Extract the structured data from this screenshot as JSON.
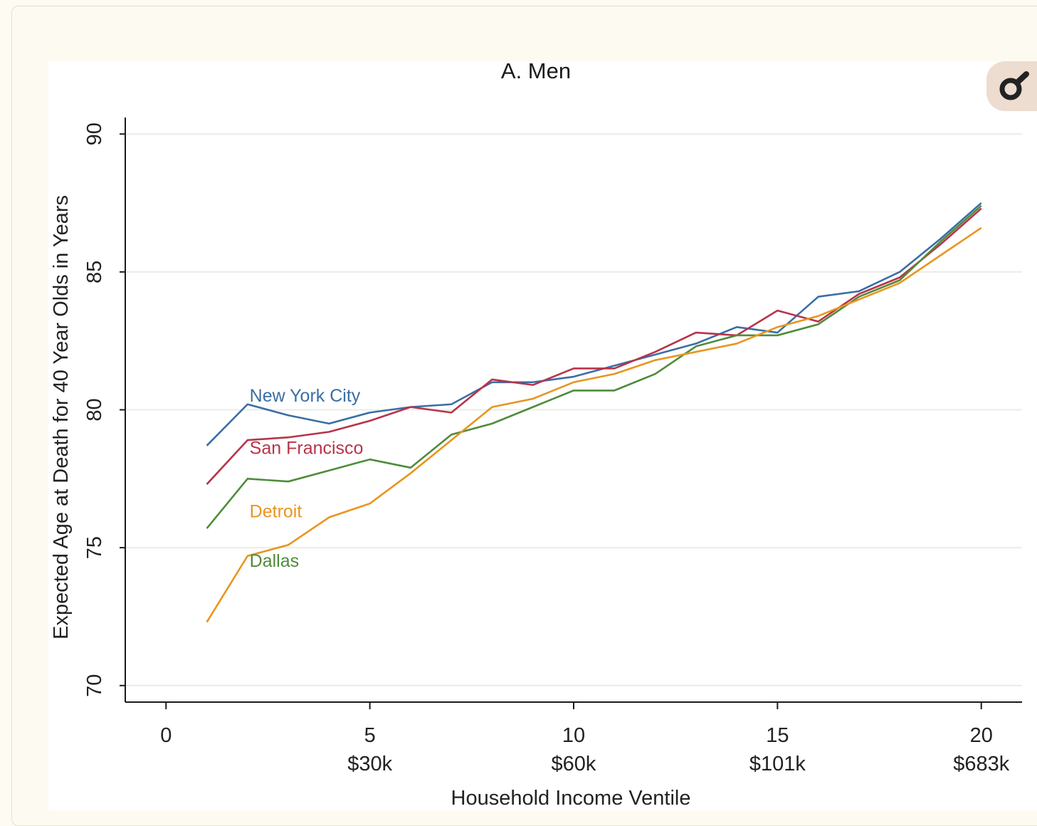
{
  "zoom_icon": "magnifier-icon",
  "colors": {
    "background": "#fdfbf2",
    "plot": "#ffffff",
    "grid": "#ecece6",
    "axis": "#1a1a1a"
  },
  "chart_data": {
    "type": "line",
    "title": "A. Men",
    "xlabel": "Household Income Ventile",
    "ylabel": "Expected Age at Death for 40 Year Olds in Years",
    "xlim": [
      -1,
      21
    ],
    "ylim": [
      69.4,
      90.6
    ],
    "grid": true,
    "legend": "inline labels",
    "x_ticks": [
      {
        "value": 0,
        "label": "0",
        "sub": ""
      },
      {
        "value": 5,
        "label": "5",
        "sub": "$30k"
      },
      {
        "value": 10,
        "label": "10",
        "sub": "$60k"
      },
      {
        "value": 15,
        "label": "15",
        "sub": "$101k"
      },
      {
        "value": 20,
        "label": "20",
        "sub": "$683k"
      }
    ],
    "y_ticks": [
      70,
      75,
      80,
      85,
      90
    ],
    "x": [
      1,
      2,
      3,
      4,
      5,
      6,
      7,
      8,
      9,
      10,
      11,
      12,
      13,
      14,
      15,
      16,
      17,
      18,
      19,
      20
    ],
    "series": [
      {
        "name": "New York City",
        "color": "#3a6ea5",
        "label_at": [
          2.05,
          80.3
        ],
        "values": [
          78.7,
          80.2,
          79.8,
          79.5,
          79.9,
          80.1,
          80.2,
          81.0,
          81.0,
          81.2,
          81.6,
          82.0,
          82.4,
          83.0,
          82.8,
          84.1,
          84.3,
          85.0,
          86.2,
          87.5
        ]
      },
      {
        "name": "San Francisco",
        "color": "#b8334a",
        "label_at": [
          2.05,
          78.4
        ],
        "values": [
          77.3,
          78.9,
          79.0,
          79.2,
          79.6,
          80.1,
          79.9,
          81.1,
          80.9,
          81.5,
          81.5,
          82.1,
          82.8,
          82.7,
          83.6,
          83.2,
          84.2,
          84.8,
          86.0,
          87.3
        ]
      },
      {
        "name": "Dallas",
        "color": "#4f8c3a",
        "label_at": [
          2.05,
          74.3
        ],
        "values": [
          75.7,
          77.5,
          77.4,
          77.8,
          78.2,
          77.9,
          79.1,
          79.5,
          80.1,
          80.7,
          80.7,
          81.3,
          82.3,
          82.7,
          82.7,
          83.1,
          84.1,
          84.7,
          86.1,
          87.4
        ]
      },
      {
        "name": "Detroit",
        "color": "#e8951f",
        "label_at": [
          2.05,
          76.1
        ],
        "values": [
          72.3,
          74.7,
          75.1,
          76.1,
          76.6,
          77.7,
          78.9,
          80.1,
          80.4,
          81.0,
          81.3,
          81.8,
          82.1,
          82.4,
          83.0,
          83.4,
          84.0,
          84.6,
          85.6,
          86.6
        ]
      }
    ]
  }
}
